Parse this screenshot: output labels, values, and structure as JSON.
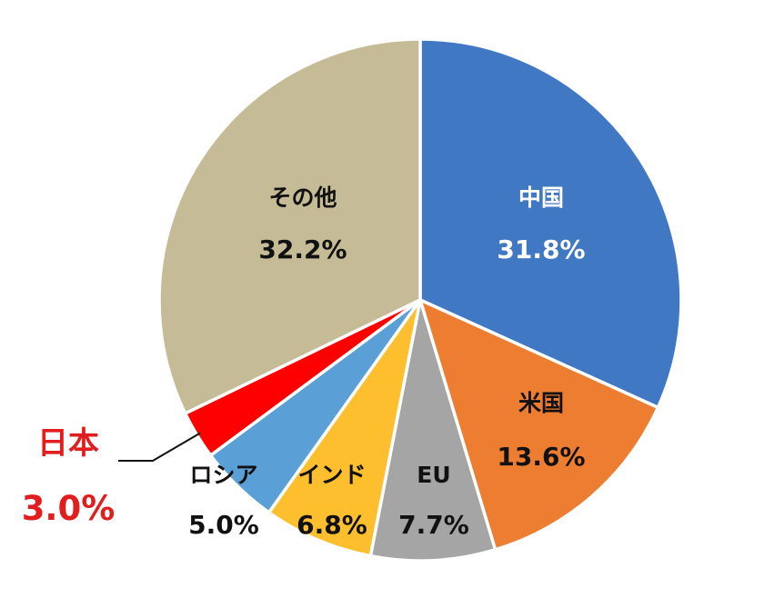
{
  "chart_data": {
    "type": "pie",
    "start_angle_deg": 0,
    "direction": "clockwise",
    "slices": [
      {
        "name": "中国",
        "value": 31.8,
        "label": "31.8%",
        "color": "#4178c4",
        "text_color": "#ffffff"
      },
      {
        "name": "米国",
        "value": 13.6,
        "label": "13.6%",
        "color": "#ed7d31",
        "text_color": "#111111"
      },
      {
        "name": "EU",
        "value": 7.7,
        "label": "7.7%",
        "color": "#a5a5a5",
        "text_color": "#111111"
      },
      {
        "name": "インド",
        "value": 6.8,
        "label": "6.8%",
        "color": "#fdbf2d",
        "text_color": "#111111"
      },
      {
        "name": "ロシア",
        "value": 5.0,
        "label": "5.0%",
        "color": "#5a9fd6",
        "text_color": "#111111"
      },
      {
        "name": "日本",
        "value": 3.0,
        "label": "3.0%",
        "color": "#ff0000",
        "text_color": "#e11d1d"
      },
      {
        "name": "その他",
        "value": 32.2,
        "label": "32.2%",
        "color": "#c6bb97",
        "text_color": "#111111"
      }
    ],
    "highlighted_slice": "日本",
    "slice_border_color": "#ffffff"
  }
}
